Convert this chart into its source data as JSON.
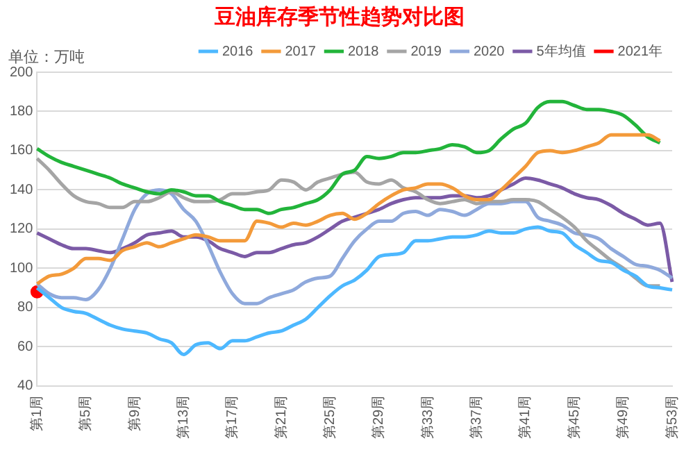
{
  "chart_data": {
    "type": "line",
    "title": "豆油库存季节性趋势对比图",
    "ylabel": "单位：万吨",
    "categories": [
      "第1周",
      null,
      null,
      null,
      "第5周",
      null,
      null,
      null,
      "第9周",
      null,
      null,
      null,
      "第13周",
      null,
      null,
      null,
      "第17周",
      null,
      null,
      null,
      "第21周",
      null,
      null,
      null,
      "第25周",
      null,
      null,
      null,
      "第29周",
      null,
      null,
      null,
      "第33周",
      null,
      null,
      null,
      "第37周",
      null,
      null,
      null,
      "第41周",
      null,
      null,
      null,
      "第45周",
      null,
      null,
      null,
      "第49周",
      null,
      null,
      null,
      "第53周"
    ],
    "series": [
      {
        "name": "2016",
        "color": "#4db8ff",
        "values": [
          90,
          85,
          80,
          78,
          77,
          74,
          71,
          69,
          68,
          67,
          64,
          62,
          56,
          61,
          62,
          59,
          63,
          63,
          65,
          67,
          68,
          71,
          74,
          80,
          86,
          91,
          94,
          99,
          106,
          107,
          108,
          114,
          114,
          115,
          116,
          116,
          117,
          119,
          118,
          118,
          120,
          121,
          119,
          118,
          112,
          108,
          104,
          103,
          99,
          96,
          91,
          90,
          89
        ]
      },
      {
        "name": "2017",
        "color": "#f39a3a",
        "values": [
          92,
          96,
          97,
          100,
          105,
          105,
          104,
          109,
          111,
          113,
          111,
          113,
          115,
          117,
          116,
          114,
          114,
          114,
          124,
          123,
          121,
          123,
          122,
          124,
          127,
          128,
          125,
          128,
          133,
          137,
          140,
          141,
          143,
          143,
          141,
          137,
          135,
          135,
          140,
          146,
          152,
          159,
          160,
          159,
          160,
          162,
          164,
          168,
          168,
          168,
          168,
          165,
          null
        ]
      },
      {
        "name": "2018",
        "color": "#22b43a",
        "values": [
          161,
          157,
          154,
          152,
          150,
          148,
          146,
          143,
          141,
          139,
          138,
          140,
          139,
          137,
          137,
          134,
          132,
          130,
          130,
          128,
          130,
          131,
          133,
          135,
          140,
          148,
          150,
          157,
          156,
          157,
          159,
          159,
          160,
          161,
          163,
          162,
          159,
          160,
          166,
          171,
          174,
          182,
          185,
          185,
          183,
          181,
          181,
          180,
          178,
          173,
          167,
          164,
          null
        ]
      },
      {
        "name": "2019",
        "color": "#a5a5a5",
        "values": [
          156,
          150,
          143,
          137,
          134,
          133,
          131,
          131,
          134,
          134,
          136,
          139,
          136,
          134,
          134,
          135,
          138,
          138,
          139,
          140,
          145,
          144,
          140,
          144,
          146,
          148,
          149,
          144,
          143,
          145,
          141,
          139,
          135,
          133,
          134,
          135,
          133,
          134,
          134,
          135,
          135,
          134,
          130,
          126,
          121,
          114,
          109,
          104,
          100,
          95,
          91,
          91,
          null
        ]
      },
      {
        "name": "2020",
        "color": "#8fa9dc",
        "values": [
          92,
          87,
          85,
          85,
          84,
          89,
          100,
          115,
          130,
          138,
          140,
          138,
          130,
          124,
          112,
          98,
          87,
          82,
          82,
          85,
          87,
          89,
          93,
          95,
          96,
          105,
          114,
          120,
          124,
          124,
          128,
          129,
          127,
          130,
          129,
          127,
          130,
          133,
          133,
          134,
          134,
          126,
          124,
          122,
          118,
          117,
          115,
          110,
          106,
          102,
          101,
          99,
          95
        ]
      },
      {
        "name": "5年均值",
        "color": "#7b5aa6",
        "values": [
          118,
          115,
          112,
          110,
          110,
          109,
          108,
          110,
          113,
          117,
          118,
          119,
          116,
          116,
          114,
          110,
          108,
          106,
          108,
          108,
          110,
          112,
          113,
          116,
          120,
          124,
          126,
          128,
          130,
          133,
          135,
          136,
          136,
          136,
          137,
          137,
          136,
          137,
          140,
          143,
          146,
          145,
          143,
          141,
          138,
          136,
          135,
          132,
          128,
          125,
          122,
          123,
          93
        ]
      },
      {
        "name": "2021年",
        "color": "#ff0000",
        "marker": "circle",
        "values": [
          88,
          null,
          null,
          null,
          null,
          null,
          null,
          null,
          null,
          null,
          null,
          null,
          null,
          null,
          null,
          null,
          null,
          null,
          null,
          null,
          null,
          null,
          null,
          null,
          null,
          null,
          null,
          null,
          null,
          null,
          null,
          null,
          null,
          null,
          null,
          null,
          null,
          null,
          null,
          null,
          null,
          null,
          null,
          null,
          null,
          null,
          null,
          null,
          null,
          null,
          null,
          null,
          null
        ]
      }
    ],
    "ylim": [
      40,
      200
    ],
    "yticks": [
      40,
      60,
      80,
      100,
      120,
      140,
      160,
      180,
      200
    ],
    "grid": "y",
    "legend": "top right",
    "marker": "none",
    "line_style": "solid"
  }
}
